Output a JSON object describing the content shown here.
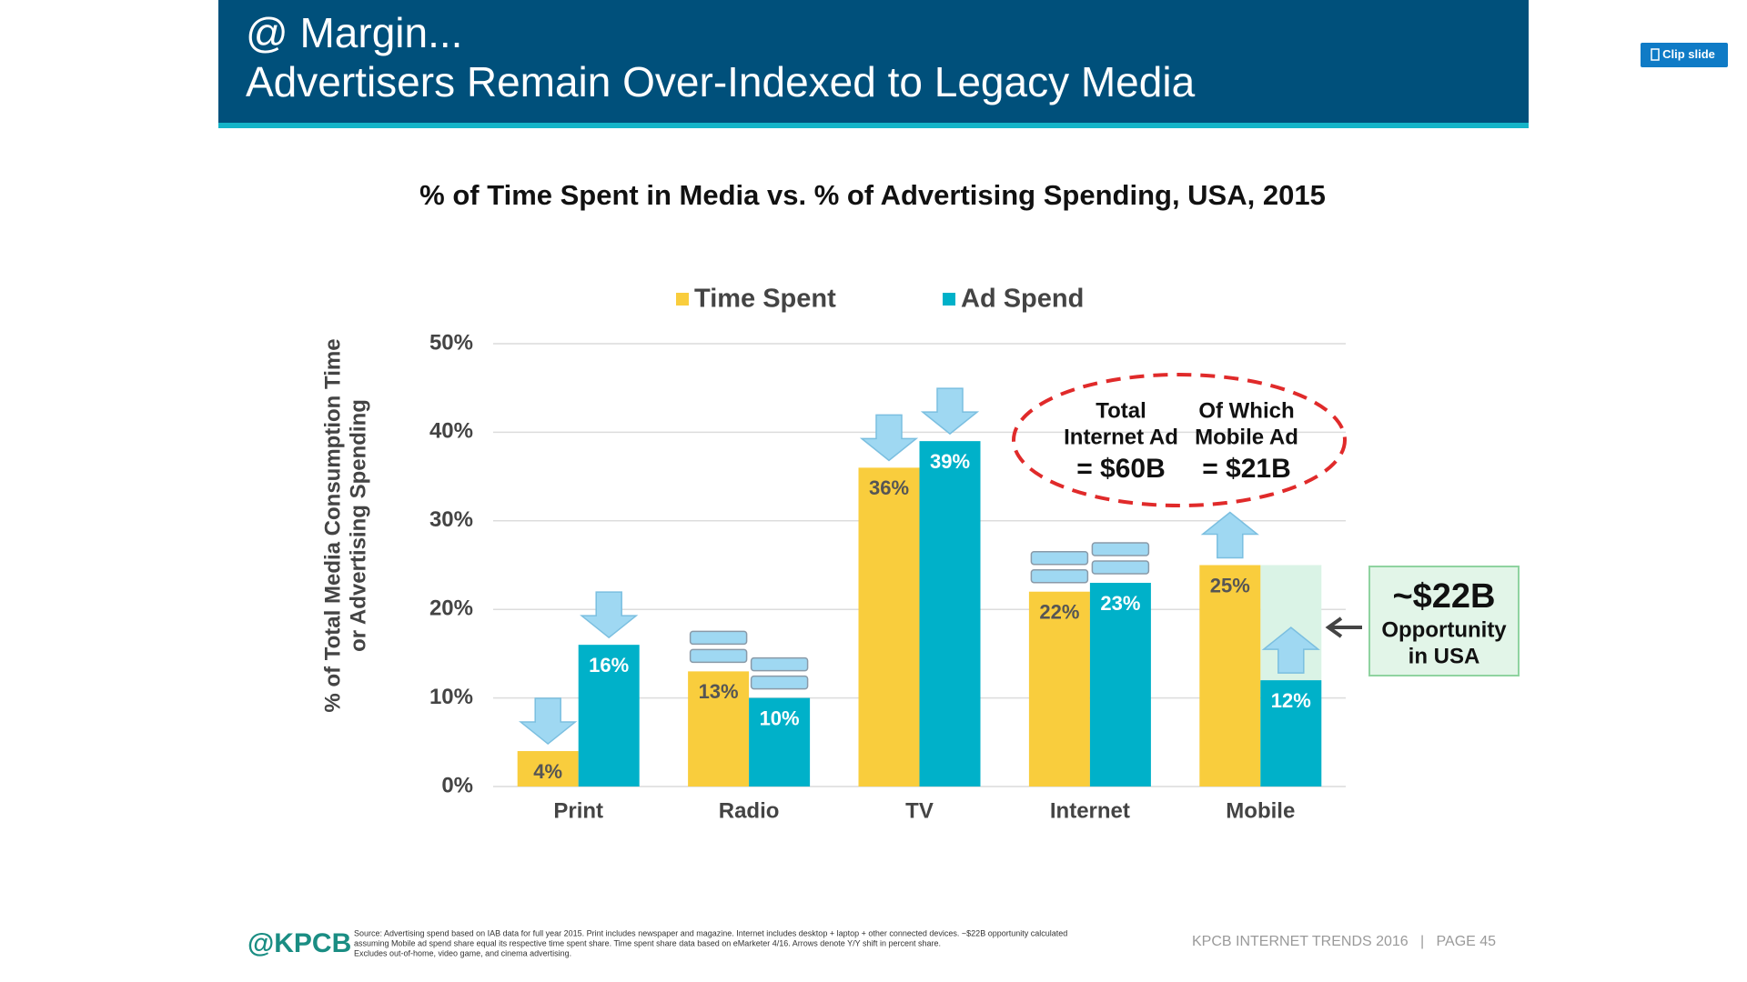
{
  "header": {
    "line1": "@ Margin...",
    "line2": "Advertisers Remain Over-Indexed to Legacy Media"
  },
  "clip_button": "Clip slide",
  "chart_data": {
    "type": "bar",
    "title": "% of Time Spent in Media vs. % of Advertising Spending, USA, 2015",
    "y_label": [
      "% of Total Media Consumption Time",
      "or Advertising Spending"
    ],
    "categories": [
      "Print",
      "Radio",
      "TV",
      "Internet",
      "Mobile"
    ],
    "series": [
      {
        "name": "Time Spent",
        "color": "#f9cd3d",
        "values": [
          4,
          13,
          36,
          22,
          25
        ],
        "value_labels": [
          "4%",
          "13%",
          "36%",
          "22%",
          "25%"
        ]
      },
      {
        "name": "Ad Spend",
        "color": "#00b1c9",
        "values": [
          16,
          10,
          39,
          23,
          12
        ],
        "value_labels": [
          "16%",
          "10%",
          "39%",
          "23%",
          "12%"
        ]
      }
    ],
    "ylim": [
      0,
      50
    ],
    "yticks": [
      {
        "value": 0,
        "label": "0%"
      },
      {
        "value": 10,
        "label": "10%"
      },
      {
        "value": 20,
        "label": "20%"
      },
      {
        "value": 30,
        "label": "30%"
      },
      {
        "value": 40,
        "label": "40%"
      },
      {
        "value": 50,
        "label": "50%"
      }
    ],
    "grid": true,
    "legend": "top",
    "annotations": {
      "internet_ad": [
        "Total",
        "Internet Ad",
        "= $60B"
      ],
      "mobile_ad": [
        "Of Which",
        "Mobile Ad",
        "= $21B"
      ],
      "opportunity": [
        "~$22B",
        "Opportunity",
        "in USA"
      ]
    }
  },
  "footer": {
    "logo": "@KPCB",
    "source": [
      "Source: Advertising spend based on IAB data for full year 2015. Print includes newspaper and magazine. Internet includes desktop + laptop + other connected devices. ~$22B opportunity calculated",
      "assuming Mobile ad spend share equal its respective time spent share. Time spent share data based on eMarketer 4/16. Arrows denote Y/Y shift in percent share.",
      "Excludes out-of-home, video game, and cinema advertising."
    ],
    "page": "KPCB INTERNET TRENDS 2016   |   PAGE 45"
  }
}
